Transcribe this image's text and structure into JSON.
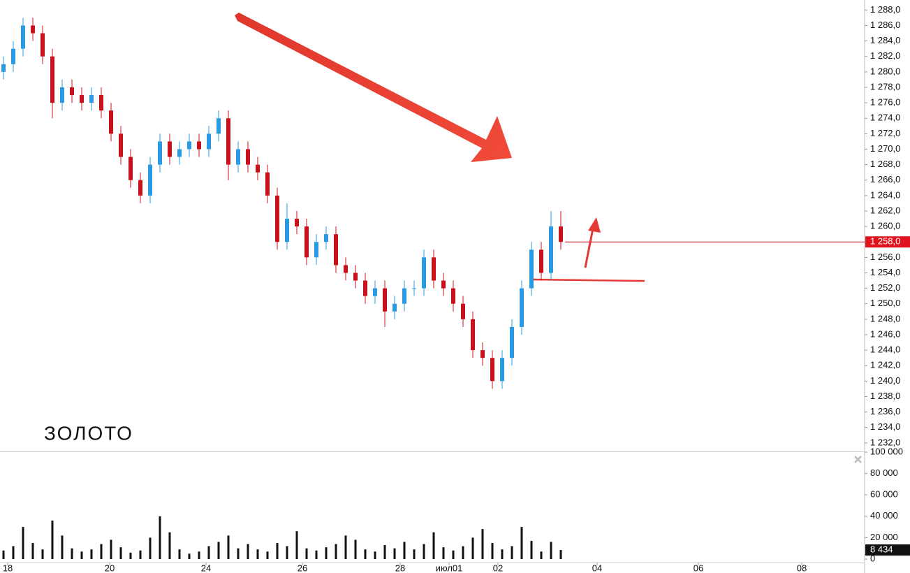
{
  "chart_data": {
    "type": "candlestick",
    "title": "ЗОЛОТО",
    "up_color": "#2a9be0",
    "down_color": "#c8111b",
    "volume_color": "#111111",
    "title_color": "#e53935",
    "x_labels": [
      "18",
      "20",
      "24",
      "26",
      "28",
      "июл01",
      "02",
      "04",
      "06",
      "08"
    ],
    "open": [
      1280,
      1281,
      1283,
      1286,
      1285,
      1282,
      1276,
      1278,
      1277,
      1276,
      1277,
      1275,
      1272,
      1269,
      1266,
      1264,
      1268,
      1271,
      1269,
      1270,
      1271,
      1270,
      1272,
      1274,
      1268,
      1270,
      1268,
      1267,
      1264,
      1258,
      1261,
      1260,
      1256,
      1258,
      1259,
      1255,
      1254,
      1253,
      1251,
      1252,
      1249,
      1250,
      1252,
      1252,
      1256,
      1253,
      1252,
      1250,
      1248,
      1244,
      1243,
      1240,
      1243,
      1247,
      1252,
      1257,
      1254,
      1260
    ],
    "high": [
      1282,
      1284,
      1287,
      1287,
      1286,
      1283,
      1279,
      1279,
      1278,
      1278,
      1278,
      1276,
      1273,
      1270,
      1267,
      1269,
      1272,
      1272,
      1271,
      1272,
      1272,
      1273,
      1275,
      1275,
      1271,
      1271,
      1269,
      1268,
      1265,
      1263,
      1262,
      1261,
      1259,
      1260,
      1260,
      1256,
      1255,
      1254,
      1253,
      1253,
      1251,
      1253,
      1253,
      1257,
      1257,
      1254,
      1253,
      1251,
      1249,
      1245,
      1244,
      1244,
      1248,
      1253,
      1258,
      1258,
      1262,
      1262
    ],
    "low": [
      1279,
      1280,
      1282,
      1284,
      1281,
      1274,
      1275,
      1276,
      1275,
      1275,
      1274,
      1271,
      1268,
      1265,
      1263,
      1263,
      1267,
      1268,
      1268,
      1269,
      1269,
      1269,
      1271,
      1266,
      1267,
      1267,
      1266,
      1263,
      1257,
      1257,
      1259,
      1255,
      1255,
      1257,
      1254,
      1253,
      1252,
      1250,
      1250,
      1247,
      1248,
      1249,
      1251,
      1251,
      1252,
      1251,
      1249,
      1247,
      1243,
      1242,
      1239,
      1239,
      1242,
      1246,
      1251,
      1253,
      1253,
      1257
    ],
    "close": [
      1281,
      1283,
      1286,
      1285,
      1282,
      1276,
      1278,
      1277,
      1276,
      1277,
      1275,
      1272,
      1269,
      1266,
      1264,
      1268,
      1271,
      1269,
      1270,
      1271,
      1270,
      1272,
      1274,
      1268,
      1270,
      1268,
      1267,
      1264,
      1258,
      1261,
      1260,
      1256,
      1258,
      1259,
      1255,
      1254,
      1253,
      1251,
      1252,
      1249,
      1250,
      1252,
      1252,
      1256,
      1253,
      1252,
      1250,
      1248,
      1244,
      1243,
      1240,
      1243,
      1247,
      1252,
      1257,
      1254,
      1260,
      1258
    ],
    "volume": [
      8000,
      12000,
      30000,
      15000,
      9000,
      36000,
      22000,
      10000,
      7000,
      9000,
      14000,
      18000,
      11000,
      6000,
      8000,
      20000,
      40000,
      25000,
      9000,
      5000,
      7000,
      12000,
      16000,
      22000,
      10000,
      14000,
      9000,
      7000,
      15000,
      12000,
      26000,
      10000,
      8000,
      11000,
      14000,
      22000,
      18000,
      9000,
      7000,
      13000,
      10000,
      16000,
      9000,
      14000,
      25000,
      11000,
      8000,
      12000,
      20000,
      28000,
      15000,
      9000,
      12000,
      30000,
      17000,
      7000,
      16000,
      8434
    ],
    "ylim": [
      1230.9,
      1289.3
    ],
    "yticks": [
      {
        "value": 1232,
        "label": "1 232,0"
      },
      {
        "value": 1234,
        "label": "1 234,0"
      },
      {
        "value": 1236,
        "label": "1 236,0"
      },
      {
        "value": 1238,
        "label": "1 238,0"
      },
      {
        "value": 1240,
        "label": "1 240,0"
      },
      {
        "value": 1242,
        "label": "1 242,0"
      },
      {
        "value": 1244,
        "label": "1 244,0"
      },
      {
        "value": 1246,
        "label": "1 246,0"
      },
      {
        "value": 1248,
        "label": "1 248,0"
      },
      {
        "value": 1250,
        "label": "1 250,0"
      },
      {
        "value": 1252,
        "label": "1 252,0"
      },
      {
        "value": 1254,
        "label": "1 254,0"
      },
      {
        "value": 1256,
        "label": "1 256,0"
      },
      {
        "value": 1258,
        "label": "1 258,0"
      },
      {
        "value": 1260,
        "label": "1 260,0"
      },
      {
        "value": 1262,
        "label": "1 262,0"
      },
      {
        "value": 1264,
        "label": "1 264,0"
      },
      {
        "value": 1266,
        "label": "1 266,0"
      },
      {
        "value": 1268,
        "label": "1 268,0"
      },
      {
        "value": 1270,
        "label": "1 270,0"
      },
      {
        "value": 1272,
        "label": "1 272,0"
      },
      {
        "value": 1274,
        "label": "1 274,0"
      },
      {
        "value": 1276,
        "label": "1 276,0"
      },
      {
        "value": 1278,
        "label": "1 278,0"
      },
      {
        "value": 1280,
        "label": "1 280,0"
      },
      {
        "value": 1282,
        "label": "1 282,0"
      },
      {
        "value": 1284,
        "label": "1 284,0"
      },
      {
        "value": 1286,
        "label": "1 286,0"
      },
      {
        "value": 1288,
        "label": "1 288,0"
      }
    ],
    "volume_ylim": [
      0,
      100000
    ],
    "volume_ticks": [
      0,
      {
        "value": 20000,
        "label": "20 000"
      },
      {
        "value": 40000,
        "label": "40 000"
      },
      {
        "value": 60000,
        "label": "60 000"
      },
      {
        "value": 80000,
        "label": "80 000"
      },
      {
        "value": 100000,
        "label": "100 000"
      }
    ],
    "last_price": {
      "value": 1258,
      "label": "1 258,0"
    },
    "last_volume": {
      "value": 8434,
      "label": "8 434"
    }
  }
}
